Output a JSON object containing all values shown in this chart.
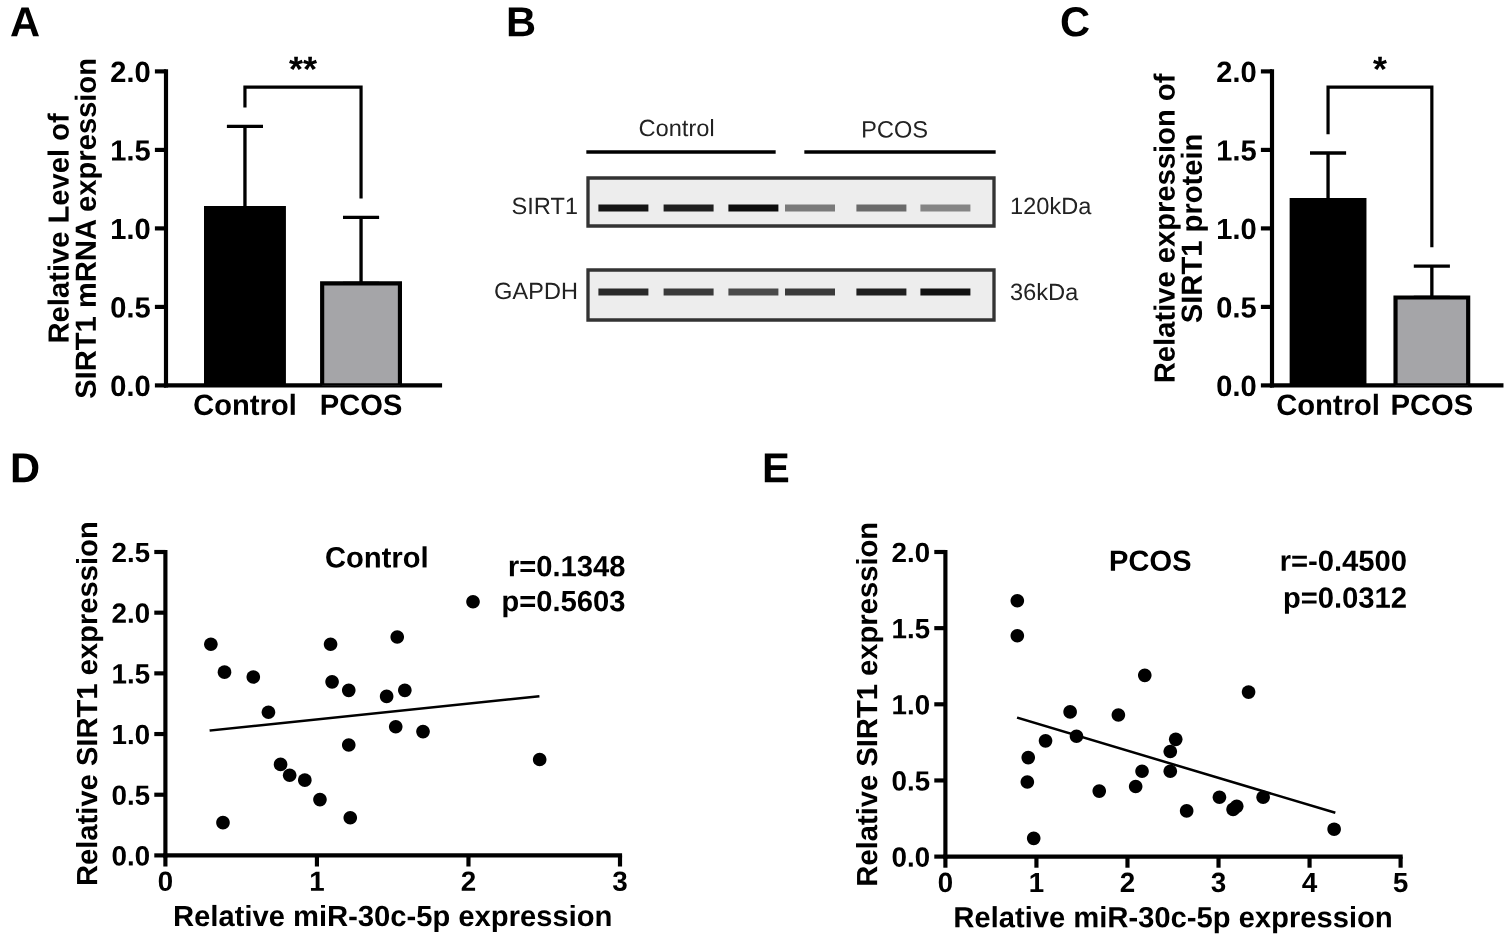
{
  "chart_data": [
    {
      "type": "bar",
      "title": "A",
      "ylabel": "Relative Level of\nSIRT1 mRNA expression",
      "categories": [
        "Control",
        "PCOS"
      ],
      "values": [
        1.13,
        0.65
      ],
      "colors": [
        "#000000",
        "#a5a5a8"
      ],
      "errors": [
        [
          1.13,
          1.65
        ],
        [
          0.65,
          1.07
        ]
      ],
      "ylim": [
        0,
        2
      ],
      "yticks": [
        {
          "value": 0,
          "label": "0.0"
        },
        0.5,
        {
          "value": 1,
          "label": "1.0"
        },
        1.5,
        {
          "value": 2,
          "label": "2.0"
        }
      ],
      "annotations": [
        "**"
      ]
    },
    {
      "type": "other",
      "title": "B",
      "annotations": [
        "Control",
        "PCOS",
        "SIRT1",
        "GAPDH",
        "120kDa",
        "36kDa"
      ]
    },
    {
      "type": "bar",
      "title": "C",
      "ylabel": "Relative expression of\nSIRT1 protein",
      "categories": [
        "Control",
        "PCOS"
      ],
      "values": [
        1.18,
        0.56
      ],
      "colors": [
        "#000000",
        "#a5a5a8"
      ],
      "errors": [
        [
          1.18,
          1.48
        ],
        [
          0.56,
          0.76
        ]
      ],
      "ylim": [
        0,
        2
      ],
      "yticks": [
        {
          "value": 0,
          "label": "0.0"
        },
        0.5,
        {
          "value": 1,
          "label": "1.0"
        },
        1.5,
        {
          "value": 2,
          "label": "2.0"
        }
      ],
      "annotations": [
        "*"
      ]
    },
    {
      "type": "scatter",
      "title": "D",
      "xlabel": "Relative miR-30c-5p expression",
      "ylabel": "Relative SIRT1 expression",
      "series": [
        {
          "type": "scatter",
          "color": "#000000",
          "marker": "circle",
          "x": [
            0.3,
            0.39,
            0.38,
            0.58,
            0.68,
            0.76,
            0.82,
            0.92,
            1.02,
            1.09,
            1.1,
            1.21,
            1.21,
            1.22,
            1.46,
            1.53,
            1.52,
            1.58,
            1.7,
            2.03,
            2.47
          ],
          "values": [
            1.74,
            1.51,
            0.27,
            1.47,
            1.18,
            0.75,
            0.66,
            0.62,
            0.46,
            1.74,
            1.43,
            1.36,
            0.91,
            0.31,
            1.31,
            1.8,
            1.06,
            1.36,
            1.02,
            2.09,
            0.79
          ]
        },
        {
          "type": "line",
          "color": "#000000",
          "x": [
            0.3,
            2.46
          ],
          "values": [
            1.03,
            1.31
          ]
        }
      ],
      "xlim": [
        0,
        3
      ],
      "xticks": [
        0,
        1,
        2,
        3
      ],
      "ylim": [
        0,
        2.5
      ],
      "yticks": [
        {
          "value": 0,
          "label": "0.0"
        },
        0.5,
        {
          "value": 1,
          "label": "1.0"
        },
        1.5,
        {
          "value": 2,
          "label": "2.0"
        },
        2.5
      ],
      "annotations": [
        "Control",
        "r=0.1348",
        "p=0.5603"
      ]
    },
    {
      "type": "scatter",
      "title": "E",
      "xlabel": "Relative miR-30c-5p expression",
      "ylabel": "Relative SIRT1 expression",
      "series": [
        {
          "type": "scatter",
          "color": "#000000",
          "marker": "circle",
          "x": [
            0.79,
            0.79,
            0.91,
            0.9,
            0.97,
            1.1,
            1.37,
            1.44,
            1.69,
            1.9,
            2.09,
            2.16,
            2.19,
            2.47,
            2.47,
            2.53,
            2.65,
            3.01,
            3.16,
            3.2,
            3.33,
            3.49,
            4.27
          ],
          "values": [
            1.68,
            1.45,
            0.65,
            0.49,
            0.12,
            0.76,
            0.95,
            0.79,
            0.43,
            0.93,
            0.46,
            0.56,
            1.19,
            0.69,
            0.56,
            0.77,
            0.3,
            0.39,
            0.31,
            0.33,
            1.08,
            0.39,
            0.18
          ]
        },
        {
          "type": "line",
          "color": "#000000",
          "x": [
            0.8,
            4.27
          ],
          "values": [
            0.91,
            0.29
          ]
        }
      ],
      "xlim": [
        0,
        5
      ],
      "xticks": [
        0,
        1,
        2,
        3,
        4,
        5
      ],
      "ylim": [
        0,
        2
      ],
      "yticks": [
        {
          "value": 0,
          "label": "0.0"
        },
        0.5,
        {
          "value": 1,
          "label": "1.0"
        },
        1.5,
        {
          "value": 2,
          "label": "2.0"
        }
      ],
      "annotations": [
        "PCOS",
        "r=-0.4500",
        "p=0.0312"
      ]
    }
  ]
}
